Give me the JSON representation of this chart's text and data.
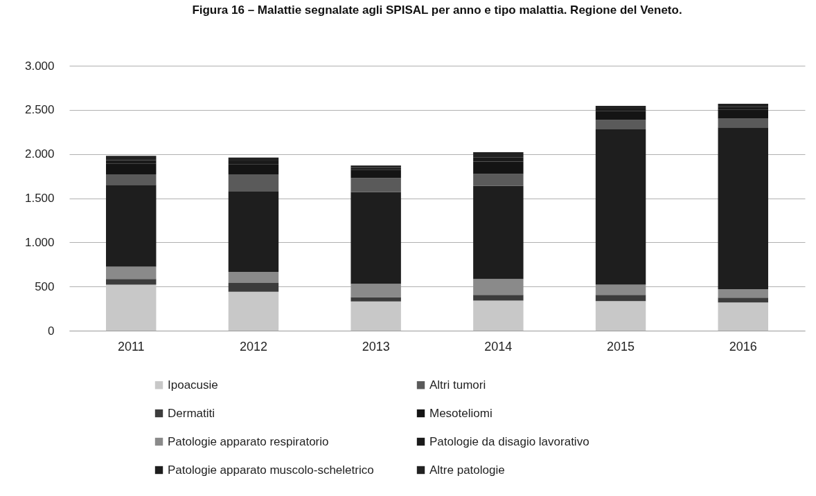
{
  "chart_data": {
    "type": "bar",
    "title": "Figura 16 – Malattie segnalate agli SPISAL per anno e tipo malattia. Regione del Veneto.",
    "categories": [
      "2011",
      "2012",
      "2013",
      "2014",
      "2015",
      "2016"
    ],
    "stacked": true,
    "series": [
      {
        "name": "Ipoacusie",
        "color": "#c8c8c8",
        "values": [
          520,
          440,
          330,
          340,
          335,
          320
        ]
      },
      {
        "name": "Dermatiti",
        "color": "#3c3c3c",
        "values": [
          65,
          100,
          50,
          65,
          70,
          55
        ]
      },
      {
        "name": "Patologie apparato respiratorio",
        "color": "#8a8a8a",
        "values": [
          140,
          125,
          150,
          180,
          115,
          95
        ]
      },
      {
        "name": "Patologie apparato muscolo-scheletrico",
        "color": "#1e1e1e",
        "values": [
          925,
          910,
          1040,
          1055,
          1760,
          1830
        ]
      },
      {
        "name": "Altri tumori",
        "color": "#5a5a5a",
        "values": [
          120,
          195,
          160,
          135,
          105,
          100
        ]
      },
      {
        "name": "Mesoteliomi",
        "color": "#141414",
        "values": [
          120,
          115,
          90,
          140,
          100,
          105
        ]
      },
      {
        "name": "Patologie da disagio lavorativo",
        "color": "#1a1a1a",
        "values": [
          40,
          35,
          25,
          45,
          30,
          30
        ]
      },
      {
        "name": "Altre patologie",
        "color": "#222222",
        "values": [
          50,
          40,
          25,
          60,
          30,
          35
        ]
      }
    ],
    "ylim": [
      0,
      3000
    ],
    "yticks": [
      0,
      500,
      {
        "value": 1000,
        "label": "1.000"
      },
      {
        "value": 1500,
        "label": "1.500"
      },
      {
        "value": 2000,
        "label": "2.000"
      },
      {
        "value": 2500,
        "label": "2.500"
      },
      {
        "value": 3000,
        "label": "3.000"
      }
    ],
    "grid": "y",
    "legend": "bottom"
  }
}
